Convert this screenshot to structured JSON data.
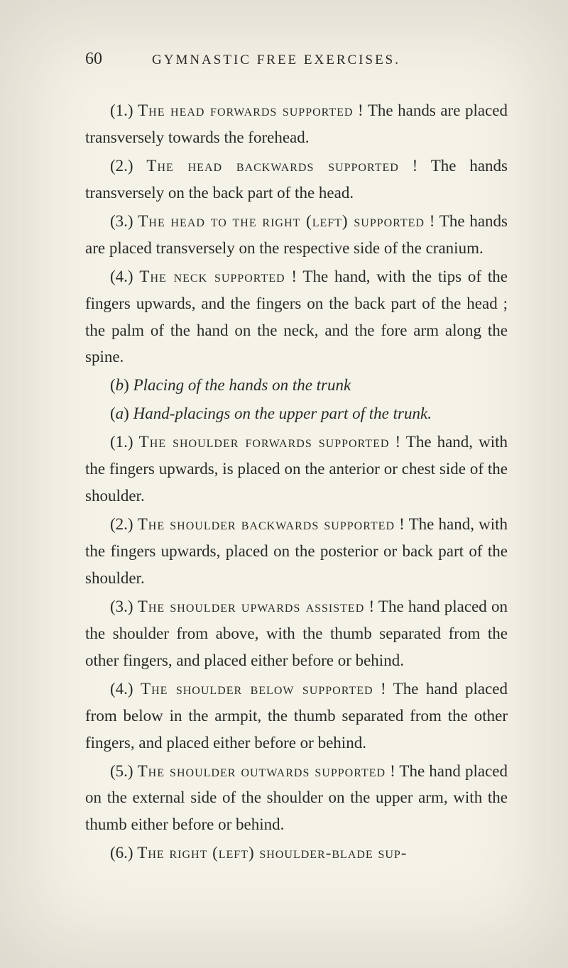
{
  "page": {
    "number": "60",
    "title": "GYMNASTIC FREE EXERCISES.",
    "background_color": "#f5f2e8",
    "text_color": "#2a2a28",
    "body_fontsize": 23,
    "header_fontsize": 19,
    "pagenum_fontsize": 24
  },
  "text": {
    "p1_a": "(1.) ",
    "p1_sc": "The head forwards supported",
    "p1_b": " ! The hands are placed transversely towards the forehead.",
    "p2_a": "(2.) ",
    "p2_sc": "The head backwards supported",
    "p2_b": " ! The hands transversely on the back part of the head.",
    "p3_a": "(3.) ",
    "p3_sc": "The head to the right (left) supported",
    "p3_b": " ! The hands are placed transversely on the respective side of the cranium.",
    "p4_a": "(4.) ",
    "p4_sc": "The neck supported",
    "p4_b": " ! The hand, with the tips of the fingers upwards, and the fingers on the back part of the head ; the palm of the hand on the neck, and the fore arm along the spine.",
    "p5_a": "(",
    "p5_i1": "b",
    "p5_b": ") ",
    "p5_i2": "Placing of the hands on the trunk",
    "p6_a": "(",
    "p6_i1": "a",
    "p6_b": ") ",
    "p6_i2": "Hand-placings on the upper part of the trunk.",
    "p7_a": "(1.) ",
    "p7_sc": "The shoulder forwards supported",
    "p7_b": " ! The hand, with the fingers upwards, is placed on the anterior or chest side of the shoulder.",
    "p8_a": "(2.) ",
    "p8_sc": "The shoulder backwards supported",
    "p8_b": " ! The hand, with the fingers upwards, placed on the posterior or back part of the shoulder.",
    "p9_a": "(3.) ",
    "p9_sc": "The shoulder upwards assisted",
    "p9_b": " ! The hand placed on the shoulder from above, with the thumb separated from the other fingers, and placed either before or behind.",
    "p10_a": "(4.) ",
    "p10_sc": "The shoulder below supported",
    "p10_b": " ! The hand placed from below in the armpit, the thumb separated from the other fingers, and placed either before or behind.",
    "p11_a": "(5.) ",
    "p11_sc": "The shoulder outwards supported",
    "p11_b": " ! The hand placed on the external side of the shoulder on the upper arm, with the thumb either before or behind.",
    "p12_a": "(6.) ",
    "p12_sc": "The right (left) shoulder-blade sup-"
  }
}
